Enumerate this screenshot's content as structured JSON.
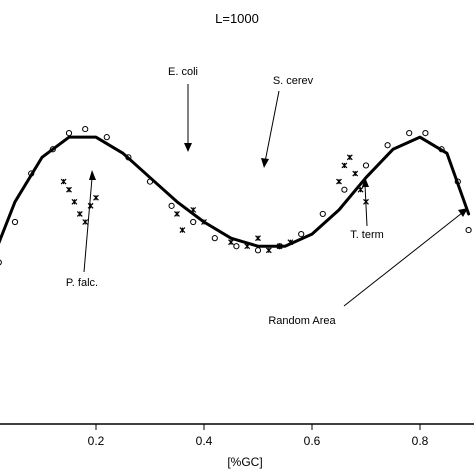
{
  "chart_data": {
    "type": "scatter",
    "title": "L=1000",
    "xlabel": "[%GC]",
    "ylabel": "",
    "xlim": [
      0.0,
      0.9
    ],
    "ylim": [
      0.0,
      1.0
    ],
    "xticks": [
      0.2,
      0.4,
      0.6,
      0.8
    ],
    "xtick_labels": [
      "0.2",
      "0.4",
      "0.6",
      "0.8"
    ],
    "series": [
      {
        "marker": "open-circle",
        "color": "#000000",
        "x": [
          0.02,
          0.05,
          0.08,
          0.12,
          0.15,
          0.18,
          0.22,
          0.26,
          0.3,
          0.34,
          0.38,
          0.42,
          0.46,
          0.5,
          0.54,
          0.58,
          0.62,
          0.66,
          0.7,
          0.74,
          0.78,
          0.81,
          0.84,
          0.87,
          0.89
        ],
        "y": [
          0.4,
          0.5,
          0.62,
          0.68,
          0.72,
          0.73,
          0.71,
          0.66,
          0.6,
          0.54,
          0.5,
          0.46,
          0.44,
          0.43,
          0.44,
          0.47,
          0.52,
          0.58,
          0.64,
          0.69,
          0.72,
          0.72,
          0.68,
          0.6,
          0.48
        ]
      },
      {
        "marker": "asterisk",
        "color": "#000000",
        "x": [
          0.14,
          0.15,
          0.16,
          0.17,
          0.18,
          0.19,
          0.2,
          0.35,
          0.36,
          0.38,
          0.4,
          0.45,
          0.48,
          0.5,
          0.52,
          0.54,
          0.56,
          0.65,
          0.66,
          0.67,
          0.68,
          0.69,
          0.7
        ],
        "y": [
          0.6,
          0.58,
          0.55,
          0.52,
          0.5,
          0.54,
          0.56,
          0.52,
          0.48,
          0.53,
          0.5,
          0.45,
          0.44,
          0.46,
          0.43,
          0.44,
          0.45,
          0.6,
          0.64,
          0.66,
          0.62,
          0.58,
          0.55
        ]
      },
      {
        "marker": "line",
        "color": "#000000",
        "x": [
          0.0,
          0.05,
          0.1,
          0.15,
          0.2,
          0.25,
          0.3,
          0.35,
          0.4,
          0.45,
          0.5,
          0.55,
          0.6,
          0.65,
          0.7,
          0.75,
          0.8,
          0.85,
          0.89
        ],
        "y": [
          0.38,
          0.55,
          0.66,
          0.71,
          0.71,
          0.67,
          0.61,
          0.55,
          0.5,
          0.46,
          0.44,
          0.44,
          0.47,
          0.53,
          0.61,
          0.68,
          0.71,
          0.67,
          0.52
        ]
      }
    ],
    "annotations": [
      {
        "label": "E. coli",
        "pointer": "down"
      },
      {
        "label": "S. cerev",
        "pointer": "down"
      },
      {
        "label": "P. falc.",
        "pointer": "up"
      },
      {
        "label": "T. term",
        "pointer": "up"
      },
      {
        "label": "Random Area",
        "pointer": "up-right"
      }
    ]
  }
}
